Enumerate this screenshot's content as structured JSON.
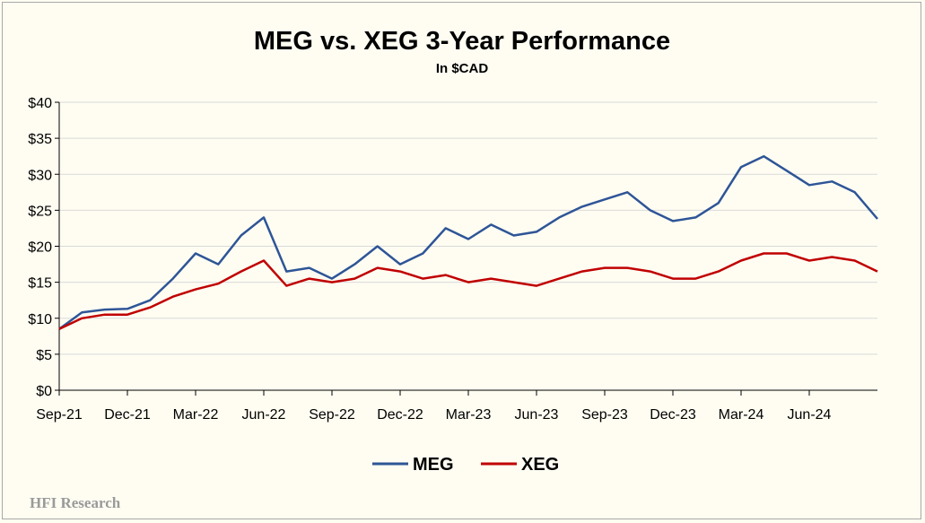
{
  "chart_data": {
    "type": "line",
    "title": "MEG vs. XEG 3-Year Performance",
    "subtitle": "In $CAD",
    "xlabel": "",
    "ylabel": "",
    "ylim": [
      0,
      40
    ],
    "y_ticks": [
      "$0",
      "$5",
      "$10",
      "$15",
      "$20",
      "$25",
      "$30",
      "$35",
      "$40"
    ],
    "x_ticks": [
      "Sep-21",
      "Dec-21",
      "Mar-22",
      "Jun-22",
      "Sep-22",
      "Dec-22",
      "Mar-23",
      "Jun-23",
      "Sep-23",
      "Dec-23",
      "Mar-24",
      "Jun-24"
    ],
    "x_range": [
      "Sep-21",
      "Sep-24"
    ],
    "grid": "horizontal",
    "legend": "bottom-center",
    "x": [
      "Sep-21",
      "Oct-21",
      "Nov-21",
      "Dec-21",
      "Jan-22",
      "Feb-22",
      "Mar-22",
      "Apr-22",
      "May-22",
      "Jun-22",
      "Jul-22",
      "Aug-22",
      "Sep-22",
      "Oct-22",
      "Nov-22",
      "Dec-22",
      "Jan-23",
      "Feb-23",
      "Mar-23",
      "Apr-23",
      "May-23",
      "Jun-23",
      "Jul-23",
      "Aug-23",
      "Sep-23",
      "Oct-23",
      "Nov-23",
      "Dec-23",
      "Jan-24",
      "Feb-24",
      "Mar-24",
      "Apr-24",
      "May-24",
      "Jun-24",
      "Jul-24",
      "Aug-24",
      "Sep-24"
    ],
    "series": [
      {
        "name": "MEG",
        "color": "#2e5597",
        "values": [
          8.5,
          10.8,
          11.2,
          11.3,
          12.5,
          15.5,
          19.0,
          17.5,
          21.5,
          24.0,
          16.5,
          17.0,
          15.5,
          17.5,
          20.0,
          17.5,
          19.0,
          22.5,
          21.0,
          23.0,
          21.5,
          22.0,
          24.0,
          25.5,
          26.5,
          27.5,
          25.0,
          23.5,
          24.0,
          26.0,
          31.0,
          32.5,
          30.5,
          28.5,
          29.0,
          27.5,
          23.8
        ]
      },
      {
        "name": "XEG",
        "color": "#c00000",
        "values": [
          8.5,
          10.0,
          10.5,
          10.5,
          11.5,
          13.0,
          14.0,
          14.8,
          16.5,
          18.0,
          14.5,
          15.5,
          15.0,
          15.5,
          17.0,
          16.5,
          15.5,
          16.0,
          15.0,
          15.5,
          15.0,
          14.5,
          15.5,
          16.5,
          17.0,
          17.0,
          16.5,
          15.5,
          15.5,
          16.5,
          18.0,
          19.0,
          19.0,
          18.0,
          18.5,
          18.0,
          16.5
        ]
      }
    ]
  },
  "watermark": "HFI Research"
}
